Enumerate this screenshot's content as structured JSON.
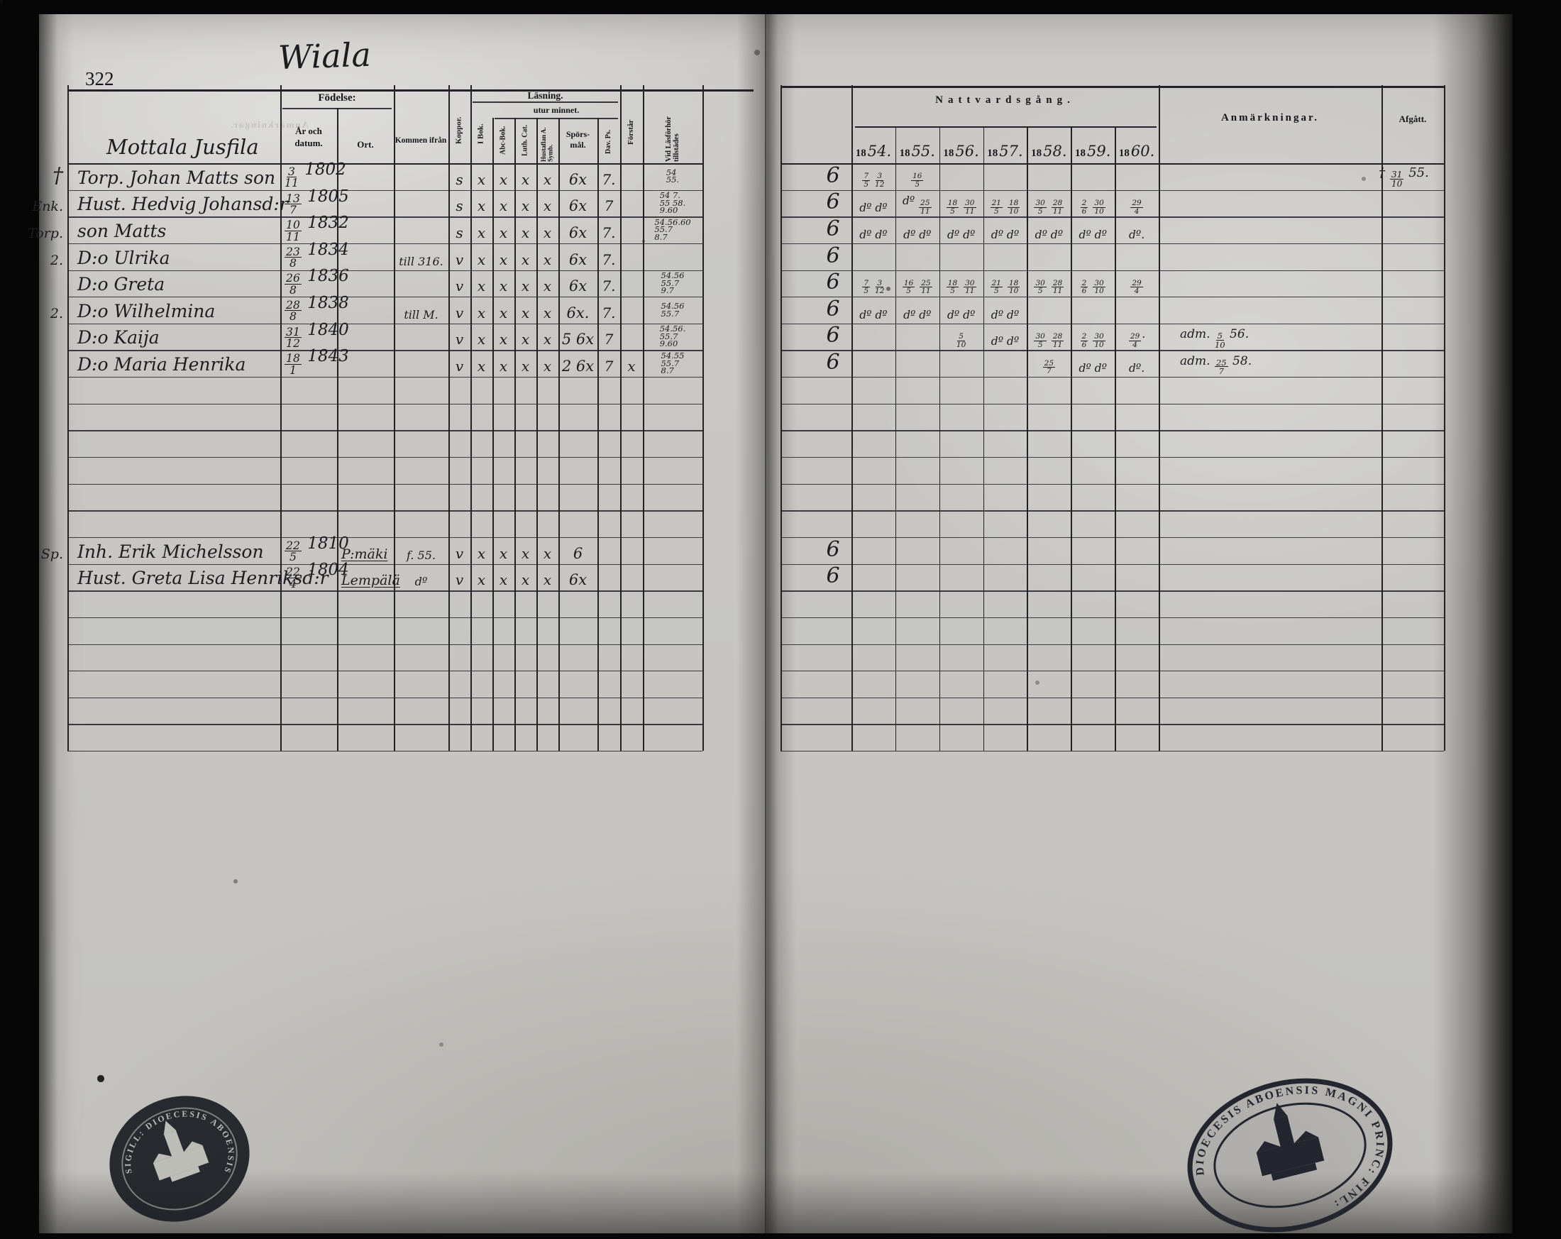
{
  "colors": {
    "paper": "#c9c8c4",
    "ink": "#1d1d20",
    "print": "#15151a",
    "stamp": "#1c2026"
  },
  "page": {
    "number": "322",
    "title": "Wiala",
    "household": "Mottala Jusfila"
  },
  "left_header": {
    "birth_group": "Födelse:",
    "col_date": "År och datum.",
    "col_ort": "Ort.",
    "col_kommen": "Kommen ifrån",
    "col_koppor": "Koppor.",
    "reading_group": "Läsning.",
    "reading_sub": "utur minnet.",
    "col_ibok": "I Bok.",
    "col_abc": "Abc-Bok.",
    "col_luth": "Luth. Cat.",
    "col_hust": "Hustaflan A. Symb.",
    "col_spors": "Spörs-mål.",
    "col_davps": "Dav. Ps.",
    "col_forstar": "Förstår",
    "col_vidlas": "Vid Läsförhör tillstädes"
  },
  "right_header": {
    "group": "Nattvardsgång.",
    "years": [
      {
        "printed": "18",
        "written": "54."
      },
      {
        "printed": "18",
        "written": "55."
      },
      {
        "printed": "18",
        "written": "56."
      },
      {
        "printed": "18",
        "written": "57."
      },
      {
        "printed": "18",
        "written": "58."
      },
      {
        "printed": "18",
        "written": "59."
      },
      {
        "printed": "18",
        "written": "60."
      }
    ],
    "col_anm": "Anmärkningar.",
    "col_afgatt": "Afgått."
  },
  "rows": [
    {
      "row": 0,
      "margin": "†",
      "name": "Torp. Johan Matts son",
      "date": "3/11 1802",
      "ort": "",
      "kommen": "",
      "koppor": "s",
      "ibok": "x",
      "abc": "x",
      "luth": "x",
      "hust": "x",
      "spors": "6x",
      "davps": "7.",
      "forstar": "",
      "vidlas": "54\n55.",
      "g": "6",
      "natt": [
        "7/5 3/12",
        "16/5",
        "",
        "",
        "",
        "",
        ""
      ],
      "anm": "",
      "afgatt": "† 31/10 55."
    },
    {
      "row": 1,
      "margin": "Enk.",
      "name": "Hust. Hedvig Johansd:r",
      "date": "13/7 1805",
      "ort": "",
      "kommen": "",
      "koppor": "s",
      "ibok": "x",
      "abc": "x",
      "luth": "x",
      "hust": "x",
      "spors": "6x",
      "davps": "7",
      "forstar": "",
      "vidlas": "54 7.\n55 58.\n9.60",
      "g": "6",
      "natt": [
        "dº dº",
        "dº 25/11",
        "18/5 30/11",
        "21/5 18/10",
        "30/5 28/11",
        "2/6 30/10",
        "29/4"
      ],
      "anm": "",
      "afgatt": ""
    },
    {
      "row": 2,
      "margin": "Torp.",
      "name": "son Matts",
      "date": "10/11 1832",
      "ort": "",
      "kommen": "",
      "koppor": "s",
      "ibok": "x",
      "abc": "x",
      "luth": "x",
      "hust": "x",
      "spors": "6x",
      "davps": "7.",
      "forstar": "",
      "vidlas": "54.56.60\n55.7\n8.7",
      "g": "6",
      "natt": [
        "dº dº",
        "dº dº",
        "dº dº",
        "dº dº",
        "dº dº",
        "dº dº",
        "dº."
      ],
      "anm": "",
      "afgatt": ""
    },
    {
      "row": 3,
      "margin": "2.",
      "name": "D:o Ulrika",
      "date": "23/8 1834",
      "ort": "",
      "kommen": "till 316.",
      "koppor": "v",
      "ibok": "x",
      "abc": "x",
      "luth": "x",
      "hust": "x",
      "spors": "6x",
      "davps": "7.",
      "forstar": "",
      "vidlas": "",
      "g": "6",
      "natt": [
        "",
        "",
        "",
        "",
        "",
        "",
        ""
      ],
      "anm": "",
      "afgatt": ""
    },
    {
      "row": 4,
      "margin": "",
      "name": "D:o Greta",
      "date": "26/8 1836",
      "ort": "",
      "kommen": "",
      "koppor": "v",
      "ibok": "x",
      "abc": "x",
      "luth": "x",
      "hust": "x",
      "spors": "6x",
      "davps": "7.",
      "forstar": "",
      "vidlas": "54.56\n55.7\n9.7",
      "g": "6",
      "natt": [
        "7/5 3/12",
        "16/5 25/11",
        "18/5 30/11",
        "21/5 18/10",
        "30/5 28/11",
        "2/6 30/10",
        "29/4"
      ],
      "anm": "",
      "afgatt": ""
    },
    {
      "row": 5,
      "margin": "2.",
      "name": "D:o Wilhelmina",
      "date": "28/8 1838",
      "ort": "",
      "kommen": "till M.",
      "koppor": "v",
      "ibok": "x",
      "abc": "x",
      "luth": "x",
      "hust": "x",
      "spors": "6x.",
      "davps": "7.",
      "forstar": "",
      "vidlas": "54.56\n55.7",
      "g": "6",
      "natt": [
        "dº dº",
        "dº dº",
        "dº dº",
        "dº dº",
        "",
        "",
        ""
      ],
      "anm": "",
      "afgatt": ""
    },
    {
      "row": 6,
      "margin": "",
      "name": "D:o Kaija",
      "date": "31/12 1840",
      "ort": "",
      "kommen": "",
      "koppor": "v",
      "ibok": "x",
      "abc": "x",
      "luth": "x",
      "hust": "x",
      "spors": "5 6x",
      "davps": "7",
      "forstar": "",
      "vidlas": "54.56.\n55.7\n9.60",
      "g": "6",
      "natt": [
        "",
        "",
        "5/10",
        "dº dº",
        "30/5 28/11",
        "2/6 30/10",
        "29/4."
      ],
      "anm": "adm. 5/10 56.",
      "afgatt": ""
    },
    {
      "row": 7,
      "margin": "",
      "name": "D:o Maria Henrika",
      "date": "18/1 1843",
      "ort": "",
      "kommen": "",
      "koppor": "v",
      "ibok": "x",
      "abc": "x",
      "luth": "x",
      "hust": "x",
      "spors": "2 6x",
      "davps": "7",
      "forstar": "x",
      "vidlas": "54.55\n55.7\n8.7",
      "g": "6",
      "natt": [
        "",
        "",
        "",
        "",
        "25/7",
        "dº dº",
        "dº."
      ],
      "anm": "adm. 25/7 58.",
      "afgatt": ""
    },
    {
      "row": 14,
      "margin": "Sp.",
      "name": "Inh. Erik Michelsson",
      "date": "22/5 1810",
      "ort": "P:mäki",
      "kommen": "f. 55.",
      "koppor": "v",
      "ibok": "x",
      "abc": "x",
      "luth": "x",
      "hust": "x",
      "spors": "6",
      "davps": "",
      "forstar": "",
      "vidlas": "",
      "g": "6",
      "natt": [
        "",
        "",
        "",
        "",
        "",
        "",
        ""
      ],
      "anm": "",
      "afgatt": ""
    },
    {
      "row": 15,
      "margin": "",
      "name": "Hust. Greta Lisa Henriksd:r",
      "date": "22/4 1804",
      "ort": "Lempälä",
      "kommen": "dº",
      "koppor": "v",
      "ibok": "x",
      "abc": "x",
      "luth": "x",
      "hust": "x",
      "spors": "6x",
      "davps": "",
      "forstar": "",
      "vidlas": "",
      "g": "6",
      "natt": [
        "",
        "",
        "",
        "",
        "",
        "",
        ""
      ],
      "anm": "",
      "afgatt": ""
    }
  ],
  "stamps": {
    "left": {
      "text": "SIGILL: DIOECESIS ABOENSIS"
    },
    "right": {
      "text": "DIOECESIS ABOENSIS MAGNI PRINC: FINL:"
    }
  }
}
